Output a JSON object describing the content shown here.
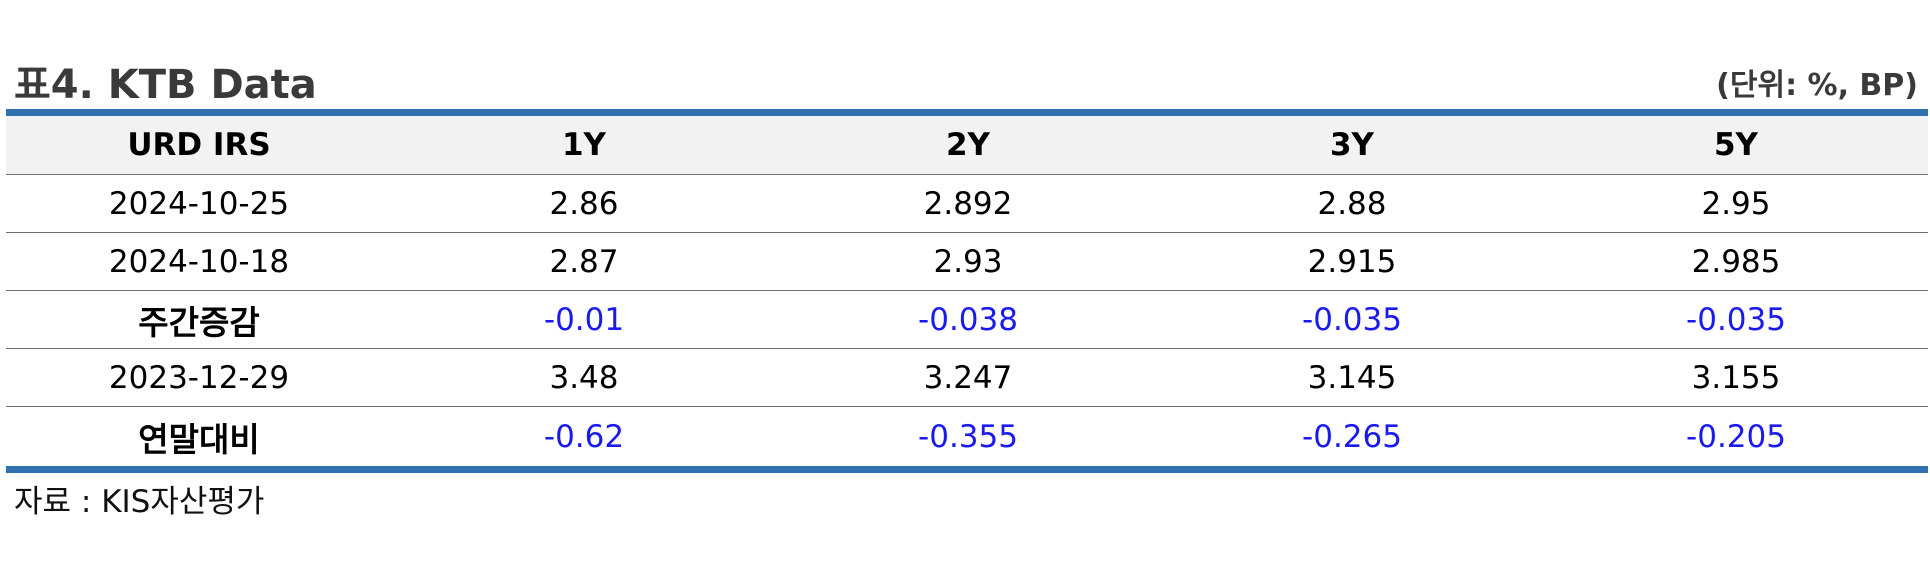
{
  "title": "표4. KTB Data",
  "unit": "(단위: %, BP)",
  "table": {
    "headers": [
      "URD IRS",
      "1Y",
      "2Y",
      "3Y",
      "5Y"
    ],
    "rows": [
      {
        "label": "2024-10-25",
        "values": [
          "2.86",
          "2.892",
          "2.88",
          "2.95"
        ],
        "bold_label": false,
        "change": false
      },
      {
        "label": "2024-10-18",
        "values": [
          "2.87",
          "2.93",
          "2.915",
          "2.985"
        ],
        "bold_label": false,
        "change": false
      },
      {
        "label": "주간증감",
        "values": [
          "-0.01",
          "-0.038",
          "-0.035",
          "-0.035"
        ],
        "bold_label": true,
        "change": true
      },
      {
        "label": "2023-12-29",
        "values": [
          "3.48",
          "3.247",
          "3.145",
          "3.155"
        ],
        "bold_label": false,
        "change": false
      },
      {
        "label": "연말대비",
        "values": [
          "-0.62",
          "-0.355",
          "-0.265",
          "-0.205"
        ],
        "bold_label": true,
        "change": true
      }
    ]
  },
  "source": "자료 : KIS자산평가",
  "colors": {
    "accent_border": "#2e70b0",
    "header_bg": "#f2f2f2",
    "change_value": "#1a1aee"
  }
}
